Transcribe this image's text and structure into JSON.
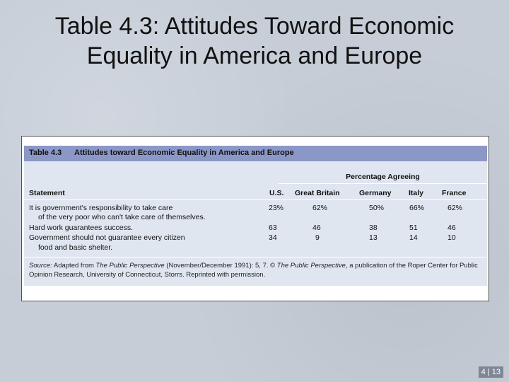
{
  "slide": {
    "title_line1": "Table 4.3: Attitudes Toward Economic",
    "title_line2": "Equality in America and Europe",
    "page_number": "4 | 13"
  },
  "table": {
    "number": "Table 4.3",
    "caption": "Attitudes toward Economic Equality in America and Europe",
    "group_heading": "Percentage Agreeing",
    "columns": [
      "Statement",
      "U.S.",
      "Great Britain",
      "Germany",
      "Italy",
      "France"
    ],
    "rows": [
      {
        "statement_line1": "It is government's responsibility to take care",
        "statement_line2": "of the very poor who can't take care of themselves.",
        "values": [
          "23%",
          "62%",
          "50%",
          "66%",
          "62%"
        ]
      },
      {
        "statement_line1": "Hard work guarantees success.",
        "values": [
          "63",
          "46",
          "38",
          "51",
          "46"
        ]
      },
      {
        "statement_line1": "Government should not guarantee every citizen",
        "statement_line2": "food and basic shelter.",
        "values": [
          "34",
          "9",
          "13",
          "14",
          "10"
        ]
      }
    ],
    "source": {
      "label": "Source:",
      "text1": " Adapted from ",
      "pub1": "The Public Perspective",
      "text2": " (November/December 1991): 5, 7. © ",
      "pub2": "The Public Perspective",
      "text3": ", a publication of the Roper Center for Public Opinion Research, University of Connecticut, Storrs. Reprinted with permission."
    }
  }
}
